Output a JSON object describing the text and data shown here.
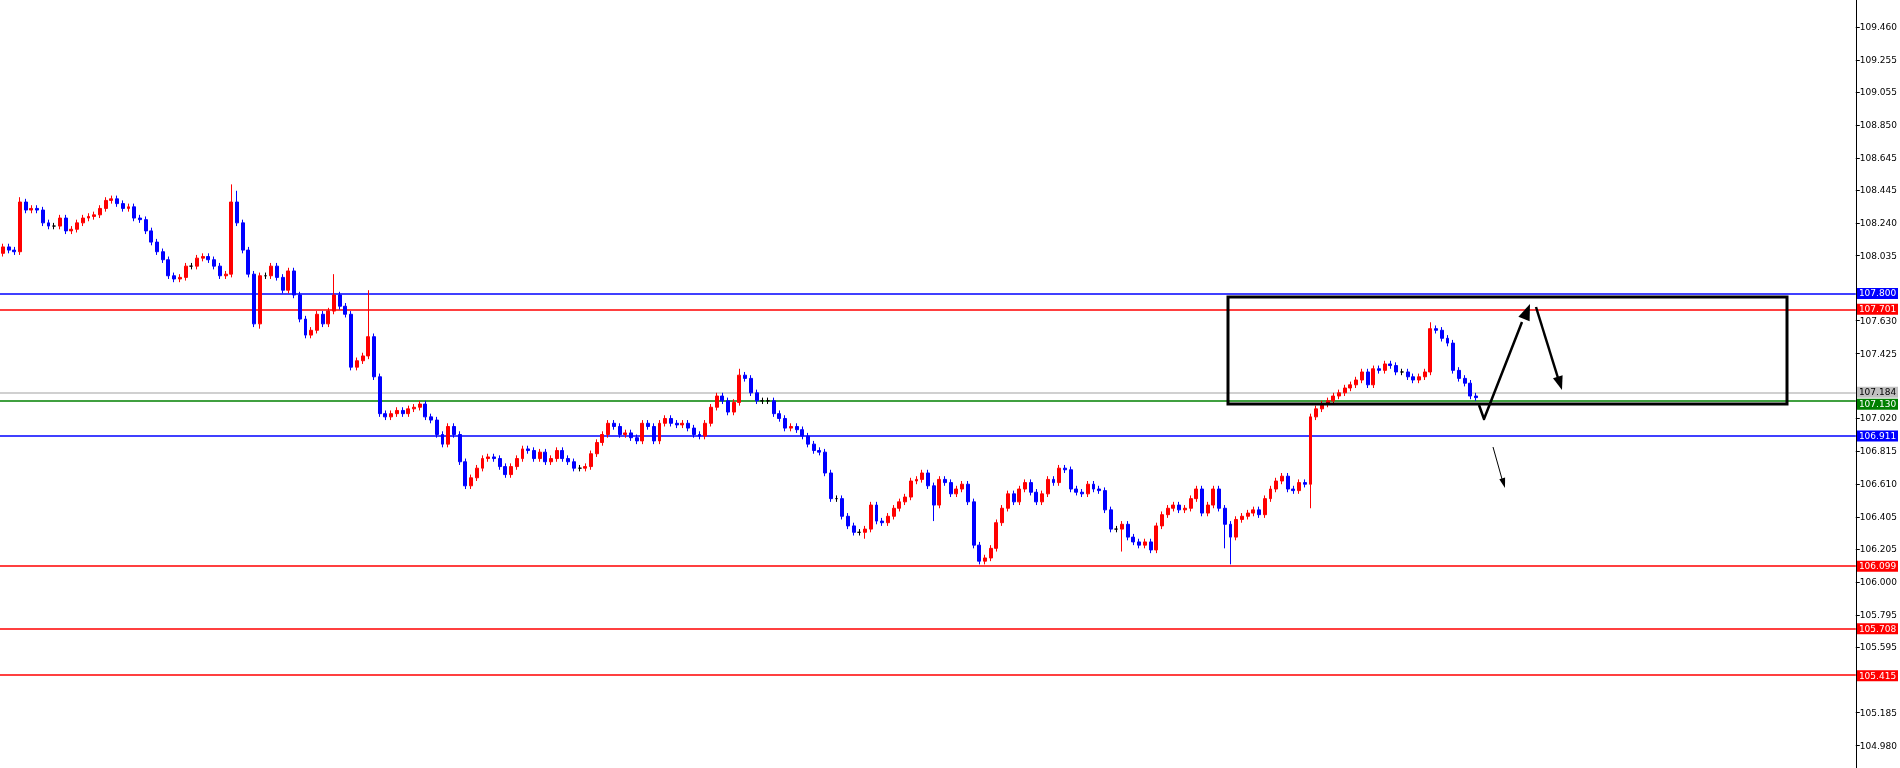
{
  "chart_data": {
    "type": "candlestick",
    "categories": [
      null,
      null,
      null,
      null,
      null,
      null,
      null,
      null,
      null,
      null,
      null,
      null,
      null,
      null,
      null,
      null,
      null,
      null,
      null,
      null,
      null,
      null,
      null,
      null,
      null,
      null,
      null,
      null,
      null,
      null,
      null,
      null,
      null,
      null,
      null,
      null,
      null,
      null,
      null,
      null,
      null,
      null,
      null,
      null,
      null,
      null,
      null,
      null,
      null,
      null,
      null,
      null,
      null,
      null,
      null,
      null,
      null,
      null,
      null,
      null,
      null,
      null,
      null,
      null,
      null,
      null,
      null,
      null,
      null,
      null,
      null,
      null,
      null,
      null,
      null,
      null,
      null,
      null,
      null,
      null,
      null,
      null,
      null,
      null,
      null,
      null,
      null,
      null,
      null,
      null,
      null,
      null,
      null,
      null,
      null,
      null,
      null,
      null,
      null,
      null,
      null,
      null,
      null,
      null,
      null,
      null,
      null,
      null,
      null,
      null,
      null,
      null,
      null,
      null,
      null,
      null,
      null,
      null,
      null,
      null,
      null,
      null,
      null,
      null,
      null,
      null,
      null,
      null,
      null,
      null,
      null,
      null,
      null,
      null,
      null,
      null,
      null,
      null,
      null,
      null,
      null,
      null,
      null,
      null,
      null,
      null,
      null,
      null,
      null,
      null,
      null,
      null,
      null,
      null,
      null,
      null,
      null,
      null,
      null,
      null,
      null,
      null,
      null,
      null,
      null,
      null,
      null,
      null,
      null,
      null,
      null,
      null,
      null,
      null,
      null,
      null,
      null,
      null,
      null,
      null,
      null,
      null,
      null,
      null,
      null,
      null,
      null,
      null,
      null,
      null,
      null,
      null,
      null,
      null,
      null,
      null,
      null,
      null,
      null,
      null,
      null,
      null,
      null,
      null,
      null,
      null,
      null,
      null,
      null,
      null,
      null,
      null,
      null,
      null,
      null,
      null,
      null,
      null,
      null,
      null,
      null,
      null,
      null,
      null,
      null,
      null,
      null,
      null,
      null,
      null,
      null,
      null,
      null,
      null,
      null,
      null,
      null,
      null,
      null,
      null,
      null,
      null,
      null,
      null,
      null,
      null,
      null,
      null,
      null,
      null,
      null,
      null,
      null,
      null,
      null,
      null,
      null,
      null,
      null,
      null,
      null,
      null,
      null,
      null,
      null,
      null,
      null,
      null,
      null,
      null,
      null,
      null,
      null,
      null,
      null,
      null,
      null,
      null,
      null,
      null,
      null,
      null,
      null,
      null,
      null,
      null,
      null,
      null,
      null,
      null,
      null,
      null,
      null,
      null,
      null,
      null,
      null,
      null,
      null,
      null,
      null,
      null,
      null,
      null,
      null,
      null,
      null,
      null,
      null,
      null,
      null,
      null,
      null,
      null,
      null,
      null,
      null,
      null,
      null,
      null,
      null,
      null,
      null,
      null,
      null
    ],
    "ohlc": [
      [
        108.05,
        108.11,
        108.03,
        108.09
      ],
      [
        108.09,
        108.11,
        108.05,
        108.07
      ],
      [
        108.07,
        108.09,
        108.04,
        108.06
      ],
      [
        108.06,
        108.4,
        108.04,
        108.37
      ],
      [
        108.37,
        108.39,
        108.3,
        108.32
      ],
      [
        108.32,
        108.35,
        108.3,
        108.33
      ],
      [
        108.33,
        108.35,
        108.3,
        108.32
      ],
      [
        108.32,
        108.34,
        108.22,
        108.24
      ],
      [
        108.24,
        108.26,
        108.2,
        108.22
      ],
      [
        108.22,
        108.24,
        108.2,
        108.22
      ],
      [
        108.22,
        108.29,
        108.2,
        108.27
      ],
      [
        108.27,
        108.29,
        108.17,
        108.19
      ],
      [
        108.19,
        108.22,
        108.17,
        108.2
      ],
      [
        108.2,
        108.26,
        108.18,
        108.24
      ],
      [
        108.24,
        108.29,
        108.22,
        108.27
      ],
      [
        108.27,
        108.3,
        108.25,
        108.28
      ],
      [
        108.28,
        108.31,
        108.26,
        108.29
      ],
      [
        108.29,
        108.35,
        108.27,
        108.33
      ],
      [
        108.33,
        108.4,
        108.31,
        108.38
      ],
      [
        108.38,
        108.41,
        108.36,
        108.39
      ],
      [
        108.39,
        108.41,
        108.34,
        108.36
      ],
      [
        108.36,
        108.38,
        108.31,
        108.33
      ],
      [
        108.33,
        108.36,
        108.31,
        108.34
      ],
      [
        108.34,
        108.36,
        108.25,
        108.27
      ],
      [
        108.27,
        108.29,
        108.24,
        108.26
      ],
      [
        108.26,
        108.28,
        108.17,
        108.19
      ],
      [
        108.19,
        108.21,
        108.1,
        108.12
      ],
      [
        108.12,
        108.14,
        108.04,
        108.06
      ],
      [
        108.06,
        108.08,
        107.99,
        108.01
      ],
      [
        108.01,
        108.03,
        107.89,
        107.91
      ],
      [
        107.91,
        107.93,
        107.87,
        107.89
      ],
      [
        107.89,
        107.92,
        107.87,
        107.9
      ],
      [
        107.9,
        107.99,
        107.88,
        107.97
      ],
      [
        107.97,
        107.99,
        107.95,
        107.97
      ],
      [
        107.97,
        108.04,
        107.95,
        108.02
      ],
      [
        108.02,
        108.05,
        108.0,
        108.03
      ],
      [
        108.03,
        108.05,
        107.99,
        108.01
      ],
      [
        108.01,
        108.03,
        107.95,
        107.97
      ],
      [
        107.97,
        107.99,
        107.89,
        107.91
      ],
      [
        107.91,
        107.94,
        107.89,
        107.92
      ],
      [
        107.92,
        108.48,
        107.9,
        108.37
      ],
      [
        108.37,
        108.44,
        108.22,
        108.24
      ],
      [
        108.24,
        108.26,
        108.05,
        108.07
      ],
      [
        108.07,
        108.09,
        107.9,
        107.92
      ],
      [
        107.92,
        107.94,
        107.59,
        107.61
      ],
      [
        107.61,
        107.93,
        107.58,
        107.91
      ],
      [
        107.91,
        107.93,
        107.89,
        107.91
      ],
      [
        107.91,
        107.99,
        107.89,
        107.97
      ],
      [
        107.97,
        107.99,
        107.88,
        107.9
      ],
      [
        107.9,
        107.92,
        107.8,
        107.82
      ],
      [
        107.82,
        107.96,
        107.8,
        107.94
      ],
      [
        107.94,
        107.96,
        107.77,
        107.79
      ],
      [
        107.79,
        107.81,
        107.62,
        107.64
      ],
      [
        107.64,
        107.66,
        107.52,
        107.54
      ],
      [
        107.54,
        107.59,
        107.52,
        107.57
      ],
      [
        107.57,
        107.69,
        107.55,
        107.67
      ],
      [
        107.67,
        107.69,
        107.59,
        107.61
      ],
      [
        107.61,
        107.71,
        107.59,
        107.69
      ],
      [
        107.69,
        107.92,
        107.67,
        107.79
      ],
      [
        107.79,
        107.81,
        107.7,
        107.72
      ],
      [
        107.72,
        107.74,
        107.65,
        107.67
      ],
      [
        107.67,
        107.69,
        107.32,
        107.34
      ],
      [
        107.34,
        107.4,
        107.32,
        107.38
      ],
      [
        107.38,
        107.43,
        107.36,
        107.41
      ],
      [
        107.41,
        107.82,
        107.39,
        107.53
      ],
      [
        107.53,
        107.55,
        107.26,
        107.28
      ],
      [
        107.28,
        107.3,
        107.03,
        107.05
      ],
      [
        107.05,
        107.07,
        107.01,
        107.03
      ],
      [
        107.03,
        107.07,
        107.01,
        107.05
      ],
      [
        107.05,
        107.09,
        107.03,
        107.07
      ],
      [
        107.07,
        107.09,
        107.03,
        107.05
      ],
      [
        107.05,
        107.1,
        107.03,
        107.08
      ],
      [
        107.08,
        107.11,
        107.06,
        107.09
      ],
      [
        107.09,
        107.13,
        107.07,
        107.11
      ],
      [
        107.11,
        107.13,
        107.01,
        107.03
      ],
      [
        107.03,
        107.05,
        106.99,
        107.01
      ],
      [
        107.01,
        107.03,
        106.9,
        106.92
      ],
      [
        106.92,
        106.94,
        106.84,
        106.86
      ],
      [
        106.86,
        106.99,
        106.84,
        106.97
      ],
      [
        106.97,
        106.99,
        106.9,
        106.92
      ],
      [
        106.92,
        106.94,
        106.73,
        106.75
      ],
      [
        106.75,
        106.77,
        106.58,
        106.6
      ],
      [
        106.6,
        106.67,
        106.58,
        106.65
      ],
      [
        106.65,
        106.73,
        106.63,
        106.71
      ],
      [
        106.71,
        106.79,
        106.69,
        106.77
      ],
      [
        106.77,
        106.8,
        106.75,
        106.78
      ],
      [
        106.78,
        106.8,
        106.75,
        106.77
      ],
      [
        106.77,
        106.79,
        106.7,
        106.72
      ],
      [
        106.72,
        106.74,
        106.65,
        106.67
      ],
      [
        106.67,
        106.74,
        106.65,
        106.72
      ],
      [
        106.72,
        106.79,
        106.7,
        106.77
      ],
      [
        106.77,
        106.85,
        106.75,
        106.83
      ],
      [
        106.83,
        106.85,
        106.8,
        106.82
      ],
      [
        106.82,
        106.84,
        106.75,
        106.77
      ],
      [
        106.77,
        106.83,
        106.75,
        106.81
      ],
      [
        106.81,
        106.83,
        106.73,
        106.75
      ],
      [
        106.75,
        106.79,
        106.73,
        106.77
      ],
      [
        106.77,
        106.84,
        106.75,
        106.82
      ],
      [
        106.82,
        106.84,
        106.75,
        106.77
      ],
      [
        106.77,
        106.79,
        106.73,
        106.75
      ],
      [
        106.75,
        106.77,
        106.69,
        106.71
      ],
      [
        106.71,
        106.73,
        106.69,
        106.71
      ],
      [
        106.71,
        106.74,
        106.69,
        106.72
      ],
      [
        106.72,
        106.82,
        106.7,
        106.8
      ],
      [
        106.8,
        106.89,
        106.78,
        106.87
      ],
      [
        106.87,
        106.94,
        106.85,
        106.92
      ],
      [
        106.92,
        107.01,
        106.9,
        106.99
      ],
      [
        106.99,
        107.01,
        106.95,
        106.97
      ],
      [
        106.97,
        106.99,
        106.9,
        106.92
      ],
      [
        106.92,
        106.95,
        106.9,
        106.93
      ],
      [
        106.93,
        106.95,
        106.88,
        106.9
      ],
      [
        106.9,
        106.92,
        106.86,
        106.88
      ],
      [
        106.88,
        107.01,
        106.86,
        106.99
      ],
      [
        106.99,
        107.01,
        106.95,
        106.97
      ],
      [
        106.97,
        106.99,
        106.86,
        106.88
      ],
      [
        106.88,
        107.01,
        106.86,
        106.99
      ],
      [
        106.99,
        107.04,
        106.97,
        107.02
      ],
      [
        107.02,
        107.04,
        106.97,
        106.99
      ],
      [
        106.99,
        107.01,
        106.96,
        106.98
      ],
      [
        106.98,
        107.01,
        106.96,
        106.99
      ],
      [
        106.99,
        107.01,
        106.94,
        106.96
      ],
      [
        106.96,
        106.98,
        106.9,
        106.92
      ],
      [
        106.92,
        106.94,
        106.89,
        106.91
      ],
      [
        106.91,
        107.01,
        106.89,
        106.99
      ],
      [
        106.99,
        107.11,
        106.97,
        107.09
      ],
      [
        107.09,
        107.18,
        107.07,
        107.16
      ],
      [
        107.16,
        107.18,
        107.11,
        107.13
      ],
      [
        107.13,
        107.15,
        107.04,
        107.06
      ],
      [
        107.06,
        107.14,
        107.04,
        107.12
      ],
      [
        107.12,
        107.33,
        107.1,
        107.29
      ],
      [
        107.29,
        107.31,
        107.25,
        107.27
      ],
      [
        107.27,
        107.29,
        107.16,
        107.18
      ],
      [
        107.18,
        107.2,
        107.11,
        107.13
      ],
      [
        107.13,
        107.15,
        107.11,
        107.13
      ],
      [
        107.13,
        107.15,
        107.11,
        107.13
      ],
      [
        107.13,
        107.15,
        107.03,
        107.05
      ],
      [
        107.05,
        107.07,
        107.0,
        107.02
      ],
      [
        107.02,
        107.04,
        106.94,
        106.96
      ],
      [
        106.96,
        106.99,
        106.94,
        106.97
      ],
      [
        106.97,
        106.99,
        106.93,
        106.95
      ],
      [
        106.95,
        106.97,
        106.89,
        106.91
      ],
      [
        106.91,
        106.93,
        106.84,
        106.86
      ],
      [
        106.86,
        106.88,
        106.8,
        106.82
      ],
      [
        106.82,
        106.84,
        106.79,
        106.81
      ],
      [
        106.81,
        106.83,
        106.66,
        106.68
      ],
      [
        106.68,
        106.7,
        106.5,
        106.52
      ],
      [
        106.52,
        106.54,
        106.5,
        106.52
      ],
      [
        106.52,
        106.54,
        106.39,
        106.41
      ],
      [
        106.41,
        106.43,
        106.33,
        106.35
      ],
      [
        106.35,
        106.37,
        106.29,
        106.31
      ],
      [
        106.31,
        106.33,
        106.29,
        106.31
      ],
      [
        106.31,
        106.35,
        106.27,
        106.33
      ],
      [
        106.33,
        106.5,
        106.31,
        106.48
      ],
      [
        106.48,
        106.5,
        106.36,
        106.38
      ],
      [
        106.38,
        106.4,
        106.35,
        106.37
      ],
      [
        106.37,
        106.43,
        106.35,
        106.41
      ],
      [
        106.41,
        106.48,
        106.39,
        106.46
      ],
      [
        106.46,
        106.52,
        106.44,
        106.5
      ],
      [
        106.5,
        106.55,
        106.48,
        106.53
      ],
      [
        106.53,
        106.65,
        106.51,
        106.63
      ],
      [
        106.63,
        106.66,
        106.61,
        106.64
      ],
      [
        106.64,
        106.7,
        106.62,
        106.68
      ],
      [
        106.68,
        106.7,
        106.58,
        106.6
      ],
      [
        106.6,
        106.62,
        106.38,
        106.48
      ],
      [
        106.48,
        106.66,
        106.46,
        106.64
      ],
      [
        106.64,
        106.66,
        106.6,
        106.62
      ],
      [
        106.62,
        106.64,
        106.53,
        106.55
      ],
      [
        106.55,
        106.6,
        106.53,
        106.58
      ],
      [
        106.58,
        106.63,
        106.56,
        106.61
      ],
      [
        106.61,
        106.63,
        106.48,
        106.5
      ],
      [
        106.5,
        106.52,
        106.21,
        106.23
      ],
      [
        106.23,
        106.25,
        106.11,
        106.13
      ],
      [
        106.13,
        106.17,
        106.11,
        106.15
      ],
      [
        106.15,
        106.23,
        106.13,
        106.21
      ],
      [
        106.21,
        106.39,
        106.19,
        106.37
      ],
      [
        106.37,
        106.48,
        106.35,
        106.46
      ],
      [
        106.46,
        106.57,
        106.44,
        106.55
      ],
      [
        106.55,
        106.57,
        106.48,
        106.5
      ],
      [
        106.5,
        106.6,
        106.48,
        106.58
      ],
      [
        106.58,
        106.64,
        106.56,
        106.62
      ],
      [
        106.62,
        106.64,
        106.54,
        106.56
      ],
      [
        106.56,
        106.58,
        106.48,
        106.5
      ],
      [
        106.5,
        106.57,
        106.48,
        106.55
      ],
      [
        106.55,
        106.66,
        106.53,
        106.64
      ],
      [
        106.64,
        106.66,
        106.6,
        106.62
      ],
      [
        106.62,
        106.73,
        106.6,
        106.71
      ],
      [
        106.71,
        106.73,
        106.68,
        106.7
      ],
      [
        106.7,
        106.72,
        106.56,
        106.58
      ],
      [
        106.58,
        106.6,
        106.54,
        106.56
      ],
      [
        106.56,
        106.58,
        106.53,
        106.55
      ],
      [
        106.55,
        106.63,
        106.53,
        106.61
      ],
      [
        106.61,
        106.63,
        106.56,
        106.58
      ],
      [
        106.58,
        106.6,
        106.55,
        106.57
      ],
      [
        106.57,
        106.59,
        106.43,
        106.45
      ],
      [
        106.45,
        106.47,
        106.31,
        106.33
      ],
      [
        106.33,
        106.35,
        106.31,
        106.33
      ],
      [
        106.33,
        106.38,
        106.19,
        106.36
      ],
      [
        106.36,
        106.38,
        106.26,
        106.28
      ],
      [
        106.28,
        106.3,
        106.23,
        106.25
      ],
      [
        106.25,
        106.27,
        106.21,
        106.23
      ],
      [
        106.23,
        106.27,
        106.21,
        106.25
      ],
      [
        106.25,
        106.27,
        106.18,
        106.2
      ],
      [
        106.2,
        106.37,
        106.18,
        106.35
      ],
      [
        106.35,
        106.44,
        106.33,
        106.42
      ],
      [
        106.42,
        106.48,
        106.4,
        106.46
      ],
      [
        106.46,
        106.5,
        106.44,
        106.48
      ],
      [
        106.48,
        106.5,
        106.43,
        106.45
      ],
      [
        106.45,
        106.48,
        106.43,
        106.46
      ],
      [
        106.46,
        106.54,
        106.44,
        106.52
      ],
      [
        106.52,
        106.6,
        106.5,
        106.58
      ],
      [
        106.58,
        106.6,
        106.41,
        106.43
      ],
      [
        106.43,
        106.5,
        106.41,
        106.48
      ],
      [
        106.48,
        106.6,
        106.46,
        106.58
      ],
      [
        106.58,
        106.6,
        106.44,
        106.46
      ],
      [
        106.46,
        106.48,
        106.21,
        106.36
      ],
      [
        106.36,
        106.38,
        106.11,
        106.28
      ],
      [
        106.28,
        106.41,
        106.26,
        106.39
      ],
      [
        106.39,
        106.43,
        106.37,
        106.41
      ],
      [
        106.41,
        106.45,
        106.39,
        106.43
      ],
      [
        106.43,
        106.47,
        106.41,
        106.45
      ],
      [
        106.45,
        106.47,
        106.4,
        106.42
      ],
      [
        106.42,
        106.54,
        106.4,
        106.52
      ],
      [
        106.52,
        106.6,
        106.5,
        106.58
      ],
      [
        106.58,
        106.65,
        106.56,
        106.63
      ],
      [
        106.63,
        106.68,
        106.61,
        106.66
      ],
      [
        106.66,
        106.68,
        106.56,
        106.58
      ],
      [
        106.58,
        106.6,
        106.55,
        106.57
      ],
      [
        106.57,
        106.64,
        106.55,
        106.62
      ],
      [
        106.62,
        106.64,
        106.59,
        106.61
      ],
      [
        106.61,
        107.05,
        106.46,
        107.03
      ],
      [
        107.03,
        107.1,
        107.01,
        107.08
      ],
      [
        107.08,
        107.13,
        107.06,
        107.11
      ],
      [
        107.11,
        107.15,
        107.09,
        107.13
      ],
      [
        107.13,
        107.18,
        107.11,
        107.16
      ],
      [
        107.16,
        107.2,
        107.14,
        107.18
      ],
      [
        107.18,
        107.23,
        107.16,
        107.21
      ],
      [
        107.21,
        107.25,
        107.19,
        107.23
      ],
      [
        107.23,
        107.28,
        107.21,
        107.26
      ],
      [
        107.26,
        107.33,
        107.24,
        107.31
      ],
      [
        107.31,
        107.33,
        107.21,
        107.23
      ],
      [
        107.23,
        107.35,
        107.21,
        107.33
      ],
      [
        107.33,
        107.35,
        107.3,
        107.32
      ],
      [
        107.32,
        107.38,
        107.3,
        107.36
      ],
      [
        107.36,
        107.38,
        107.33,
        107.35
      ],
      [
        107.35,
        107.37,
        107.29,
        107.31
      ],
      [
        107.31,
        107.33,
        107.29,
        107.31
      ],
      [
        107.31,
        107.33,
        107.26,
        107.28
      ],
      [
        107.28,
        107.3,
        107.24,
        107.26
      ],
      [
        107.26,
        107.3,
        107.24,
        107.28
      ],
      [
        107.28,
        107.33,
        107.26,
        107.31
      ],
      [
        107.31,
        107.62,
        107.29,
        107.58
      ],
      [
        107.58,
        107.6,
        107.55,
        107.57
      ],
      [
        107.57,
        107.59,
        107.5,
        107.52
      ],
      [
        107.52,
        107.54,
        107.47,
        107.49
      ],
      [
        107.49,
        107.51,
        107.3,
        107.32
      ],
      [
        107.32,
        107.34,
        107.25,
        107.27
      ],
      [
        107.27,
        107.29,
        107.22,
        107.24
      ],
      [
        107.24,
        107.26,
        107.14,
        107.16
      ],
      [
        107.16,
        107.18,
        107.13,
        107.15
      ],
      null,
      null,
      null,
      null,
      null,
      null,
      null,
      null,
      null,
      null,
      null,
      null,
      null,
      null,
      null,
      null,
      null,
      null,
      null,
      null,
      null,
      null,
      null,
      null,
      null,
      null,
      null,
      null,
      null,
      null,
      null,
      null,
      null,
      null,
      null,
      null,
      null,
      null,
      null,
      null,
      null,
      null,
      null,
      null,
      null,
      null,
      null,
      null,
      null,
      null,
      null,
      null,
      null,
      null,
      null,
      null,
      null,
      null,
      null,
      null,
      null,
      null,
      null,
      null,
      null,
      null
    ],
    "colors": [
      "#ff0000",
      "#0000ff",
      "#0000ff",
      "#ff0000",
      "#0000ff",
      "#ff0000",
      "#0000ff",
      "#0000ff",
      "#0000ff",
      "#000000",
      "#ff0000",
      "#0000ff",
      "#ff0000",
      "#ff0000",
      "#ff0000",
      "#ff0000",
      "#ff0000",
      "#ff0000",
      "#ff0000",
      "#ff0000",
      "#0000ff",
      "#0000ff",
      "#ff0000",
      "#0000ff",
      "#0000ff",
      "#0000ff",
      "#0000ff",
      "#0000ff",
      "#0000ff",
      "#0000ff",
      "#0000ff",
      "#ff0000",
      "#ff0000",
      "#000000",
      "#ff0000",
      "#ff0000",
      "#0000ff",
      "#0000ff",
      "#0000ff",
      "#ff0000",
      "#ff0000",
      "#0000ff",
      "#0000ff",
      "#0000ff",
      "#0000ff",
      "#ff0000",
      "#000000",
      "#ff0000",
      "#0000ff",
      "#0000ff",
      "#ff0000",
      "#0000ff",
      "#0000ff",
      "#0000ff",
      "#ff0000",
      "#ff0000",
      "#0000ff",
      "#ff0000",
      "#ff0000",
      "#0000ff",
      "#0000ff",
      "#0000ff",
      "#ff0000",
      "#ff0000",
      "#ff0000",
      "#0000ff",
      "#0000ff",
      "#0000ff",
      "#ff0000",
      "#ff0000",
      "#0000ff",
      "#ff0000",
      "#ff0000",
      "#ff0000",
      "#0000ff",
      "#0000ff",
      "#0000ff",
      "#0000ff",
      "#ff0000",
      "#0000ff",
      "#0000ff",
      "#0000ff",
      "#ff0000",
      "#ff0000",
      "#ff0000",
      "#ff0000",
      "#0000ff",
      "#0000ff",
      "#0000ff",
      "#ff0000",
      "#ff0000",
      "#ff0000",
      "#0000ff",
      "#0000ff",
      "#ff0000",
      "#0000ff",
      "#ff0000",
      "#ff0000",
      "#0000ff",
      "#0000ff",
      "#0000ff",
      "#000000",
      "#ff0000",
      "#ff0000",
      "#ff0000",
      "#ff0000",
      "#ff0000",
      "#0000ff",
      "#0000ff",
      "#ff0000",
      "#0000ff",
      "#0000ff",
      "#ff0000",
      "#0000ff",
      "#0000ff",
      "#ff0000",
      "#ff0000",
      "#0000ff",
      "#0000ff",
      "#ff0000",
      "#0000ff",
      "#0000ff",
      "#0000ff",
      "#ff0000",
      "#ff0000",
      "#ff0000",
      "#0000ff",
      "#0000ff",
      "#ff0000",
      "#ff0000",
      "#0000ff",
      "#0000ff",
      "#0000ff",
      "#000000",
      "#000000",
      "#0000ff",
      "#0000ff",
      "#0000ff",
      "#ff0000",
      "#0000ff",
      "#0000ff",
      "#0000ff",
      "#0000ff",
      "#0000ff",
      "#0000ff",
      "#0000ff",
      "#000000",
      "#0000ff",
      "#0000ff",
      "#0000ff",
      "#000000",
      "#ff0000",
      "#ff0000",
      "#0000ff",
      "#0000ff",
      "#ff0000",
      "#ff0000",
      "#ff0000",
      "#ff0000",
      "#ff0000",
      "#ff0000",
      "#ff0000",
      "#0000ff",
      "#0000ff",
      "#ff0000",
      "#0000ff",
      "#0000ff",
      "#ff0000",
      "#ff0000",
      "#0000ff",
      "#0000ff",
      "#0000ff",
      "#ff0000",
      "#ff0000",
      "#ff0000",
      "#ff0000",
      "#ff0000",
      "#0000ff",
      "#ff0000",
      "#ff0000",
      "#0000ff",
      "#0000ff",
      "#ff0000",
      "#ff0000",
      "#0000ff",
      "#ff0000",
      "#0000ff",
      "#0000ff",
      "#0000ff",
      "#0000ff",
      "#ff0000",
      "#0000ff",
      "#0000ff",
      "#0000ff",
      "#0000ff",
      "#000000",
      "#ff0000",
      "#0000ff",
      "#0000ff",
      "#0000ff",
      "#ff0000",
      "#0000ff",
      "#ff0000",
      "#ff0000",
      "#ff0000",
      "#ff0000",
      "#0000ff",
      "#ff0000",
      "#ff0000",
      "#ff0000",
      "#0000ff",
      "#ff0000",
      "#ff0000",
      "#0000ff",
      "#0000ff",
      "#0000ff",
      "#ff0000",
      "#ff0000",
      "#ff0000",
      "#ff0000",
      "#0000ff",
      "#ff0000",
      "#ff0000",
      "#ff0000",
      "#ff0000",
      "#0000ff",
      "#0000ff",
      "#ff0000",
      "#0000ff",
      "#ff0000",
      "#ff0000",
      "#ff0000",
      "#ff0000",
      "#ff0000",
      "#ff0000",
      "#ff0000",
      "#ff0000",
      "#ff0000",
      "#ff0000",
      "#0000ff",
      "#ff0000",
      "#0000ff",
      "#ff0000",
      "#0000ff",
      "#0000ff",
      "#000000",
      "#0000ff",
      "#0000ff",
      "#ff0000",
      "#ff0000",
      "#ff0000",
      "#0000ff",
      "#0000ff",
      "#0000ff",
      "#0000ff",
      "#0000ff",
      "#0000ff",
      "#0000ff",
      "#0000ff",
      null,
      null,
      null,
      null,
      null,
      null,
      null,
      null,
      null,
      null,
      null,
      null,
      null,
      null,
      null,
      null,
      null,
      null,
      null,
      null,
      null,
      null,
      null,
      null,
      null,
      null,
      null,
      null,
      null,
      null,
      null,
      null,
      null,
      null,
      null,
      null,
      null,
      null,
      null,
      null,
      null,
      null,
      null,
      null,
      null,
      null,
      null,
      null,
      null,
      null,
      null,
      null,
      null,
      null,
      null,
      null,
      null,
      null,
      null,
      null,
      null,
      null,
      null,
      null,
      null,
      null
    ],
    "ylim": [
      104.84,
      109.63
    ],
    "yticks": [
      {
        "value": 109.46,
        "label": "109.460"
      },
      109.255,
      109.055,
      {
        "value": 108.85,
        "label": "108.850"
      },
      108.645,
      108.445,
      {
        "value": 108.24,
        "label": "108.240"
      },
      108.035,
      {
        "value": 107.63,
        "label": "107.630"
      },
      107.425,
      {
        "value": 107.02,
        "label": "107.020"
      },
      106.815,
      {
        "value": 106.61,
        "label": "106.610"
      },
      106.405,
      106.205,
      {
        "value": 106,
        "label": "106.000"
      },
      105.795,
      105.595,
      105.185,
      {
        "value": 104.98,
        "label": "104.980"
      }
    ],
    "ref_lines": [
      {
        "axis": "y",
        "value": 107.8,
        "label": "107.800",
        "color": "#0000ff"
      },
      {
        "axis": "y",
        "value": 107.701,
        "label": "107.701",
        "color": "#ff0000"
      },
      {
        "axis": "y",
        "value": 107.184,
        "label": "107.184",
        "color": "#c0c0c0"
      },
      {
        "axis": "y",
        "value": 107.13,
        "label": "107.130",
        "color": "#008000"
      },
      {
        "axis": "y",
        "value": 106.911,
        "label": "106.911",
        "color": "#0000ff"
      },
      {
        "axis": "y",
        "value": 106.099,
        "label": "106.099",
        "color": "#ff0000"
      },
      {
        "axis": "y",
        "value": 105.708,
        "label": "105.708",
        "color": "#ff0000"
      },
      {
        "axis": "y",
        "value": 105.415,
        "label": "105.415",
        "color": "#ff0000"
      }
    ],
    "tick_labels": "y"
  }
}
